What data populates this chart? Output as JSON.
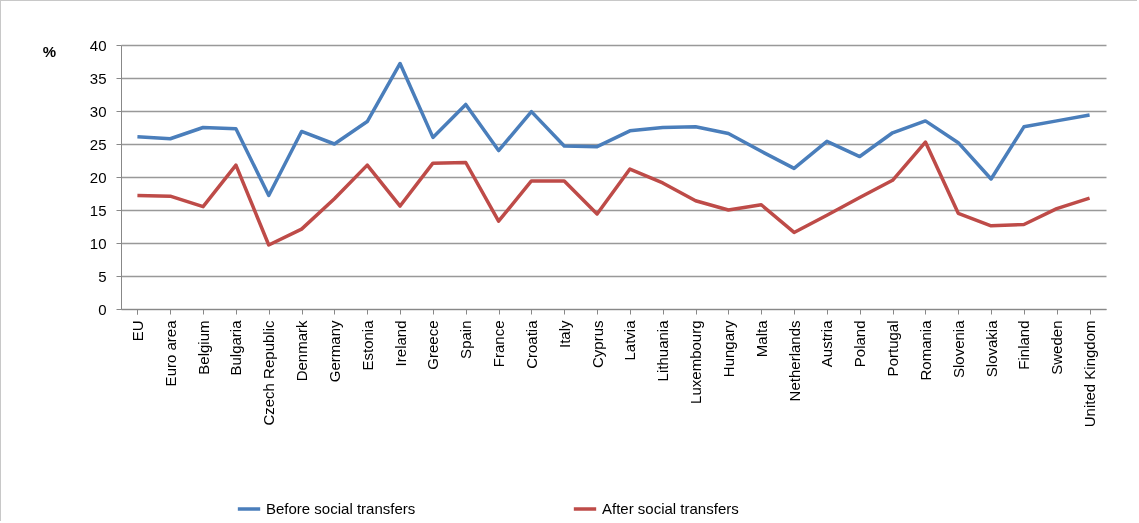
{
  "chart_data": {
    "type": "line",
    "ylabel": "%",
    "categories": [
      "EU",
      "Euro area",
      "Belgium",
      "Bulgaria",
      "Czech Republic",
      "Denmark",
      "Germany",
      "Estonia",
      "Ireland",
      "Greece",
      "Spain",
      "France",
      "Croatia",
      "Italy",
      "Cyprus",
      "Latvia",
      "Lithuania",
      "Luxembourg",
      "Hungary",
      "Malta",
      "Netherlands",
      "Austria",
      "Poland",
      "Portugal",
      "Romania",
      "Slovenia",
      "Slovakia",
      "Finland",
      "Sweden",
      "United Kingdom"
    ],
    "series": [
      {
        "name": "Before social transfers",
        "color": "#4a7ebb",
        "values": [
          26.1,
          25.8,
          27.5,
          27.3,
          17.2,
          26.9,
          25.0,
          28.4,
          37.2,
          26.0,
          31.0,
          24.0,
          29.9,
          24.7,
          24.6,
          27.0,
          27.5,
          27.6,
          26.6,
          23.9,
          21.3,
          25.4,
          23.1,
          26.7,
          28.5,
          25.2,
          19.7,
          27.6,
          28.5,
          29.4
        ]
      },
      {
        "name": "After social transfers",
        "color": "#be4b48",
        "values": [
          17.2,
          17.1,
          15.5,
          21.8,
          9.7,
          12.1,
          16.7,
          21.8,
          15.6,
          22.1,
          22.2,
          13.3,
          19.4,
          19.4,
          14.4,
          21.2,
          19.1,
          16.4,
          15.0,
          15.8,
          11.6,
          14.2,
          16.9,
          19.5,
          25.3,
          14.5,
          12.6,
          12.8,
          15.2,
          16.8
        ]
      }
    ],
    "ylim": [
      0,
      40
    ],
    "yticks": [
      0,
      5,
      10,
      15,
      20,
      25,
      30,
      35,
      40
    ],
    "grid": "y",
    "legend": "bottom",
    "marker": "none",
    "line_style": "solid"
  }
}
